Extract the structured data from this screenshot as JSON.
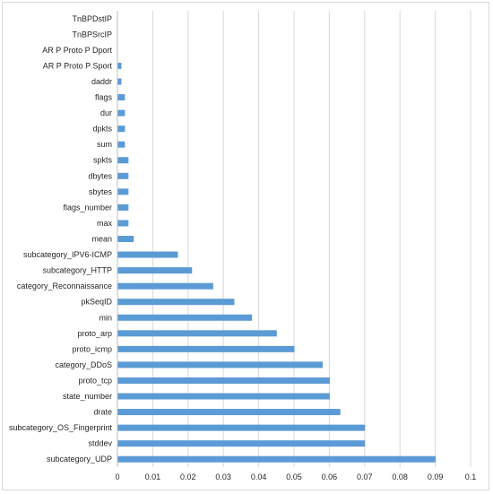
{
  "chart_data": {
    "type": "bar",
    "orientation": "horizontal",
    "title": "",
    "xlabel": "",
    "ylabel": "",
    "xlim": [
      0,
      0.1
    ],
    "x_ticks": [
      "0",
      "0.01",
      "0.02",
      "0.03",
      "0.04",
      "0.05",
      "0.06",
      "0.07",
      "0.08",
      "0.09",
      "0.1"
    ],
    "grid": "vertical",
    "legend": "none",
    "bar_color": "#5b9bd5",
    "categories": [
      "subcategory_UDP",
      "stddev",
      "subcategory_OS_Fingerprint",
      "drate",
      "state_number",
      "proto_tcp",
      "category_DDoS",
      "proto_icmp",
      "proto_arp",
      "min",
      "pkSeqID",
      "category_Reconnaissance",
      "subcategory_HTTP",
      "subcategory_IPV6-ICMP",
      "mean",
      "max",
      "flags_number",
      "sbytes",
      "dbytes",
      "spkts",
      "sum",
      "dpkts",
      "dur",
      "flags",
      "daddr",
      "AR P Proto P Sport",
      "AR P Proto P Dport",
      "TnBPSrcIP",
      "TnBPDstIP"
    ],
    "values": [
      0.09,
      0.07,
      0.07,
      0.063,
      0.06,
      0.06,
      0.058,
      0.05,
      0.045,
      0.038,
      0.033,
      0.027,
      0.021,
      0.017,
      0.0045,
      0.003,
      0.003,
      0.003,
      0.003,
      0.003,
      0.002,
      0.002,
      0.002,
      0.002,
      0.001,
      0.001,
      0.0,
      0.0,
      0.0
    ]
  }
}
